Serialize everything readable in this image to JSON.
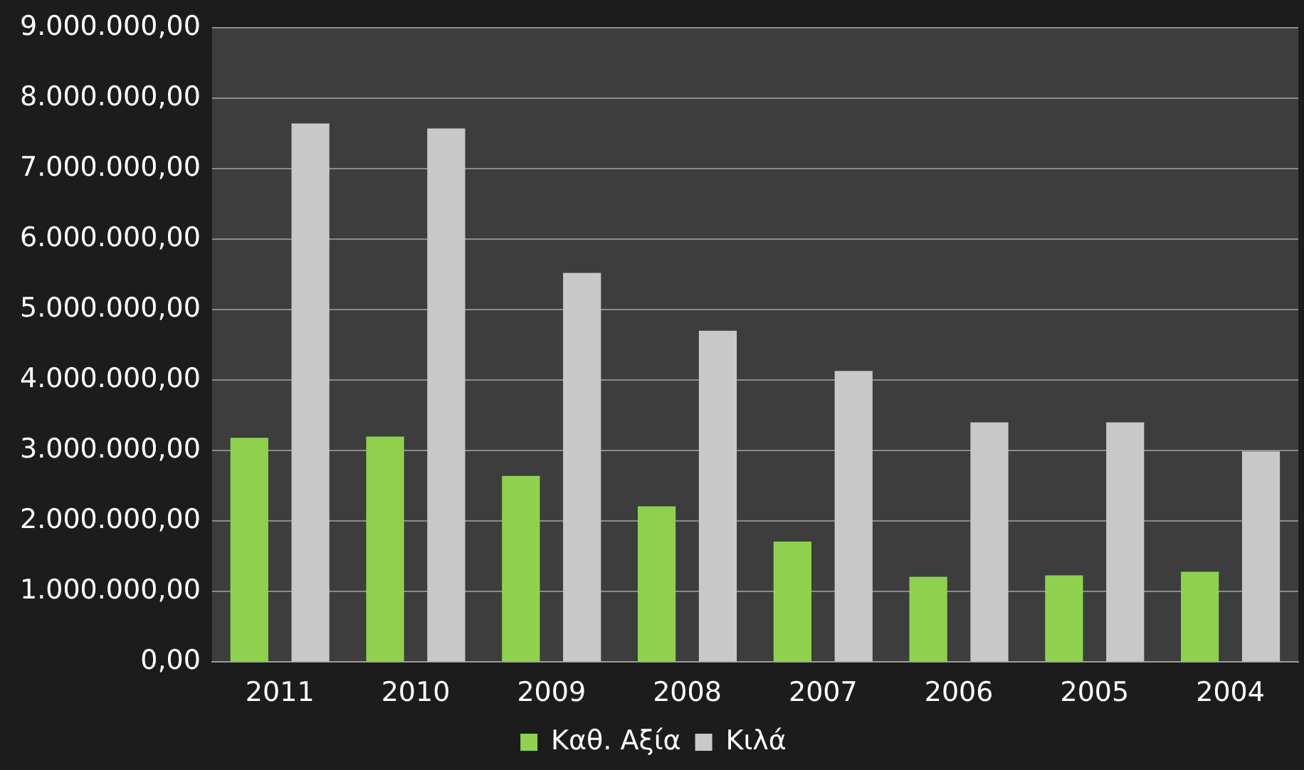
{
  "chart_data": {
    "type": "bar",
    "categories": [
      "2011",
      "2010",
      "2009",
      "2008",
      "2007",
      "2006",
      "2005",
      "2004"
    ],
    "series": [
      {
        "name": "Καθ. Αξία",
        "color": "#8fd14f",
        "values": [
          3180000,
          3200000,
          2640000,
          2210000,
          1710000,
          1210000,
          1230000,
          1280000
        ]
      },
      {
        "name": "Κιλά",
        "color": "#c8c8c8",
        "values": [
          7640000,
          7570000,
          5520000,
          4700000,
          4130000,
          3400000,
          3400000,
          2990000
        ]
      }
    ],
    "ylim": [
      0,
      9000000
    ],
    "yticks": [
      {
        "value": 0,
        "label": "0,00"
      },
      {
        "value": 1000000,
        "label": "1.000.000,00"
      },
      {
        "value": 2000000,
        "label": "2.000.000,00"
      },
      {
        "value": 3000000,
        "label": "3.000.000,00"
      },
      {
        "value": 4000000,
        "label": "4.000.000,00"
      },
      {
        "value": 5000000,
        "label": "5.000.000,00"
      },
      {
        "value": 6000000,
        "label": "6.000.000,00"
      },
      {
        "value": 7000000,
        "label": "7.000.000,00"
      },
      {
        "value": 8000000,
        "label": "8.000.000,00"
      },
      {
        "value": 9000000,
        "label": "9.000.000,00"
      }
    ],
    "grid": "y",
    "legend": "bottom"
  }
}
